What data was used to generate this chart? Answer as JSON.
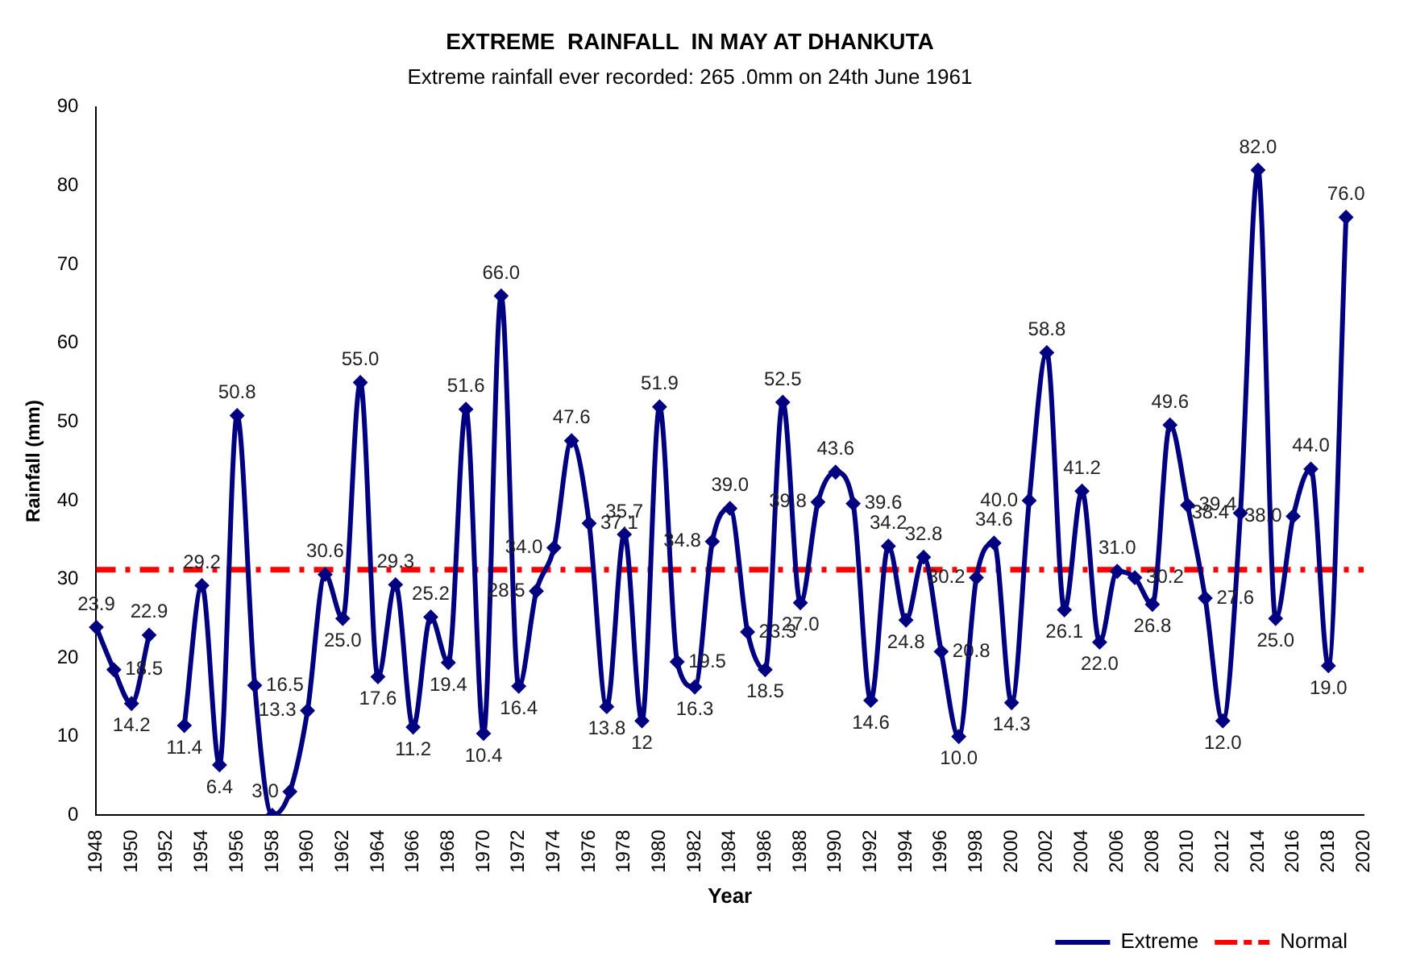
{
  "chart_data": {
    "type": "line",
    "title": "EXTREME  RAINFALL  IN MAY AT DHANKUTA",
    "subtitle": "Extreme rainfall ever recorded: 265 .0mm on 24th June 1961",
    "xlabel": "Year",
    "ylabel": "Rainfall (mm)",
    "categories": [
      "1948",
      null,
      "1950",
      null,
      "1952",
      null,
      "1954",
      null,
      "1956",
      null,
      "1958",
      null,
      "1960",
      null,
      "1962",
      null,
      "1964",
      null,
      "1966",
      null,
      "1968",
      null,
      "1970",
      null,
      "1972",
      null,
      "1974",
      null,
      "1976",
      null,
      "1978",
      null,
      "1980",
      null,
      "1982",
      null,
      "1984",
      null,
      "1986",
      null,
      "1988",
      null,
      "1990",
      null,
      "1992",
      null,
      "1994",
      null,
      "1996",
      null,
      "1998",
      null,
      "2000",
      null,
      "2002",
      null,
      "2004",
      null,
      "2006",
      null,
      "2008",
      null,
      "2010",
      null,
      "2012",
      null,
      "2014",
      null,
      "2016",
      null,
      "2018",
      null,
      "2020"
    ],
    "series": [
      {
        "name": "Extreme",
        "color": "#000080",
        "values": [
          23.9,
          18.5,
          14.2,
          22.9,
          null,
          11.4,
          29.2,
          6.4,
          50.8,
          16.5,
          0,
          3.0,
          13.3,
          30.6,
          25.0,
          55.0,
          17.6,
          29.3,
          11.2,
          25.2,
          19.4,
          51.6,
          10.4,
          66.0,
          16.4,
          28.5,
          34.0,
          47.6,
          37.1,
          13.8,
          35.7,
          12,
          51.9,
          19.5,
          16.3,
          34.8,
          39.0,
          23.3,
          18.5,
          52.5,
          27.0,
          39.8,
          43.6,
          39.6,
          14.6,
          34.2,
          24.8,
          32.8,
          20.8,
          10.0,
          30.2,
          34.6,
          14.3,
          40.0,
          58.8,
          26.1,
          41.2,
          22.0,
          31.0,
          30.2,
          26.8,
          49.6,
          39.4,
          27.6,
          12.0,
          38.4,
          82.0,
          25.0,
          38.0,
          44.0,
          19.0,
          76.0,
          null
        ],
        "value_labels": [
          "23.9",
          "18.5",
          "14.2",
          "22.9",
          null,
          "11.4",
          "29.2",
          "6.4",
          "50.8",
          "16.5",
          null,
          "3.0",
          "13.3",
          "30.6",
          "25.0",
          "55.0",
          "17.6",
          "29.3",
          "11.2",
          "25.2",
          "19.4",
          "51.6",
          "10.4",
          "66.0",
          "16.4",
          "28.5",
          "34.0",
          "47.6",
          "37.1",
          "13.8",
          "35.7",
          "12",
          "51.9",
          "19.5",
          "16.3",
          "34.8",
          "39.0",
          "23.3",
          "18.5",
          "52.5",
          "27.0",
          "39.8",
          "43.6",
          "39.6",
          "14.6",
          "34.2",
          "24.8",
          "32.8",
          "20.8",
          "10.0",
          "30.2",
          "34.6",
          "14.3",
          "40.0",
          "58.8",
          "26.1",
          "41.2",
          "22.0",
          "31.0",
          "30.2",
          "26.8",
          "49.6",
          "39.4",
          "27.6",
          "12.0",
          "38.4",
          "82.0",
          "25.0",
          "38.0",
          "44.0",
          "19.0",
          "76.0",
          null
        ]
      }
    ],
    "ref_lines": [
      {
        "axis": "y",
        "value": 31.2,
        "label": "Normal",
        "color": "#ff0000",
        "line_style": "dashdot"
      }
    ],
    "ylim": [
      0,
      90
    ],
    "yticks": [
      0,
      10,
      20,
      30,
      40,
      50,
      60,
      70,
      80,
      90
    ],
    "grid": false,
    "legend": "bottom right",
    "marker": "diamond",
    "line_style": "solid"
  }
}
